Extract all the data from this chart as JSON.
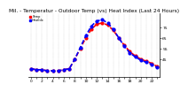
{
  "title": "Mil. - Temperatur - Outdoor Temp (vs) Heat Index (Last 24 Hours)",
  "hours": [
    0,
    1,
    2,
    3,
    4,
    5,
    6,
    7,
    8,
    9,
    10,
    11,
    12,
    13,
    14,
    15,
    16,
    17,
    18,
    19,
    20,
    21,
    22,
    23
  ],
  "temp": [
    36,
    35,
    35,
    34,
    34,
    34,
    35,
    36,
    45,
    55,
    65,
    73,
    78,
    79,
    77,
    72,
    65,
    58,
    52,
    48,
    45,
    43,
    41,
    38
  ],
  "heat_index": [
    36,
    35,
    35,
    34,
    34,
    34,
    35,
    36,
    45,
    56,
    67,
    76,
    81,
    82,
    79,
    73,
    65,
    57,
    51,
    47,
    44,
    42,
    40,
    37
  ],
  "temp_color": "#ff0000",
  "heat_color": "#0000ff",
  "ylim": [
    28,
    88
  ],
  "yticks": [
    45,
    55,
    65,
    75
  ],
  "bg_color": "#ffffff",
  "grid_color": "#888888",
  "title_fontsize": 4.2,
  "tick_fontsize": 3.2,
  "linewidth": 1.2,
  "markersize": 2.0
}
